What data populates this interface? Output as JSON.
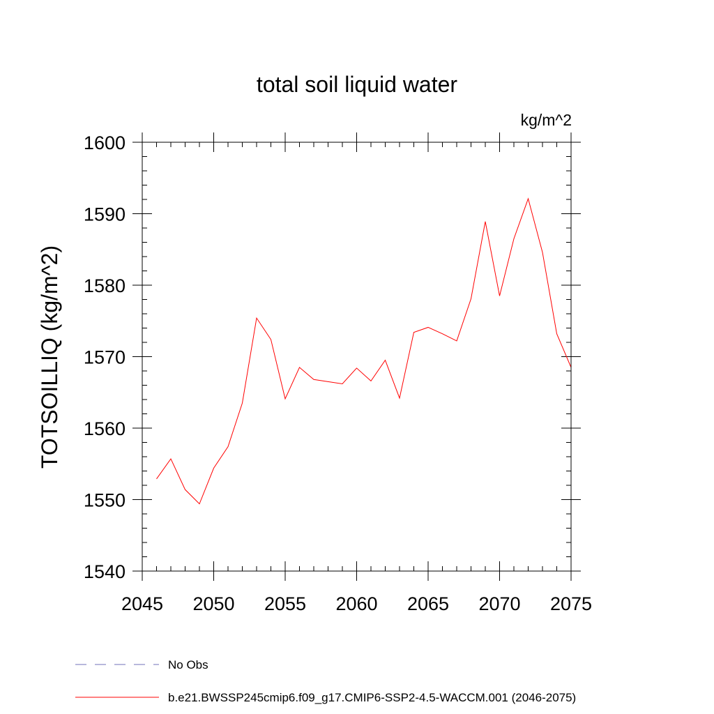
{
  "chart_data": {
    "type": "line",
    "title": "total soil liquid water",
    "units": "kg/m^2",
    "ylabel": "TOTSOILLIQ  (kg/m^2)",
    "xlabel": "",
    "xlim": [
      2045,
      2075
    ],
    "ylim": [
      1540,
      1600
    ],
    "xticks": [
      "2045",
      "2050",
      "2055",
      "2060",
      "2065",
      "2070",
      "2075"
    ],
    "yticks": [
      "1540",
      "1550",
      "1560",
      "1570",
      "1580",
      "1590",
      "1600"
    ],
    "grid": false,
    "legend_position": "bottom",
    "series": [
      {
        "name": "b.e21.BWSSP245cmip6.f09_g17.CMIP6-SSP2-4.5-WACCM.001 (2046-2075)",
        "color": "#ff0000",
        "style": "solid",
        "x": [
          2046,
          2047,
          2048,
          2049,
          2050,
          2051,
          2052,
          2053,
          2054,
          2055,
          2056,
          2057,
          2058,
          2059,
          2060,
          2061,
          2062,
          2063,
          2064,
          2065,
          2066,
          2067,
          2068,
          2069,
          2070,
          2071,
          2072,
          2073,
          2074,
          2075
        ],
        "y": [
          1552.9,
          1555.7,
          1551.4,
          1549.4,
          1554.4,
          1557.4,
          1563.5,
          1575.4,
          1572.4,
          1564.1,
          1568.5,
          1566.8,
          1566.5,
          1566.2,
          1568.4,
          1566.6,
          1569.5,
          1564.2,
          1573.4,
          1574.1,
          1573.2,
          1572.2,
          1578.1,
          1588.9,
          1578.5,
          1586.5,
          1592.1,
          1584.6,
          1573.2,
          1568.5
        ]
      }
    ],
    "legend": [
      {
        "label": "No Obs",
        "color": "#7070b8",
        "style": "dashed"
      },
      {
        "label": "b.e21.BWSSP245cmip6.f09_g17.CMIP6-SSP2-4.5-WACCM.001 (2046-2075)",
        "color": "#ff0000",
        "style": "solid"
      }
    ]
  }
}
